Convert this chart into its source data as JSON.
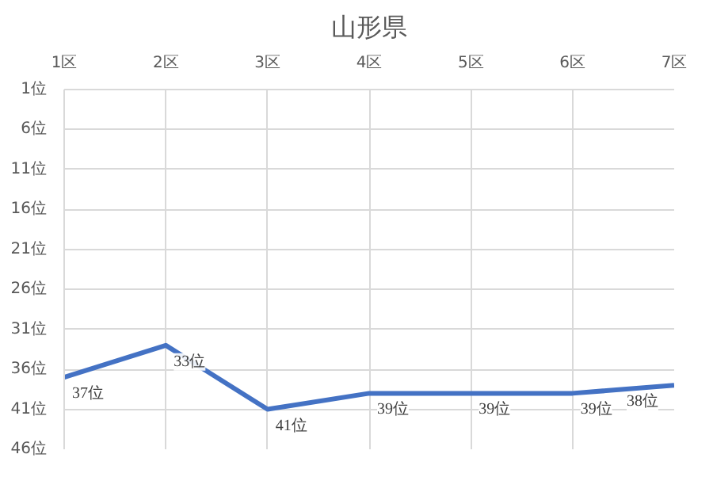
{
  "chart_data": {
    "type": "line",
    "title": "山形県",
    "categories": [
      "1区",
      "2区",
      "3区",
      "4区",
      "5区",
      "6区",
      "7区"
    ],
    "series": [
      {
        "color": "#4472c4",
        "values": [
          37,
          33,
          41,
          39,
          39,
          39,
          38
        ],
        "value_labels": [
          "37位",
          "33位",
          "41位",
          "39位",
          "39位",
          "39位",
          "38位"
        ]
      }
    ],
    "ylim": [
      46,
      1
    ],
    "yticks": [
      {
        "value": 1,
        "label": "1位"
      },
      {
        "value": 6,
        "label": "6位"
      },
      {
        "value": 11,
        "label": "11位"
      },
      {
        "value": 16,
        "label": "16位"
      },
      {
        "value": 21,
        "label": "21位"
      },
      {
        "value": 26,
        "label": "26位"
      },
      {
        "value": 31,
        "label": "31位"
      },
      {
        "value": 36,
        "label": "36位"
      },
      {
        "value": 41,
        "label": "41位"
      },
      {
        "value": 46,
        "label": "46位"
      }
    ],
    "grid": true,
    "marker": "none",
    "line_style": "solid"
  }
}
